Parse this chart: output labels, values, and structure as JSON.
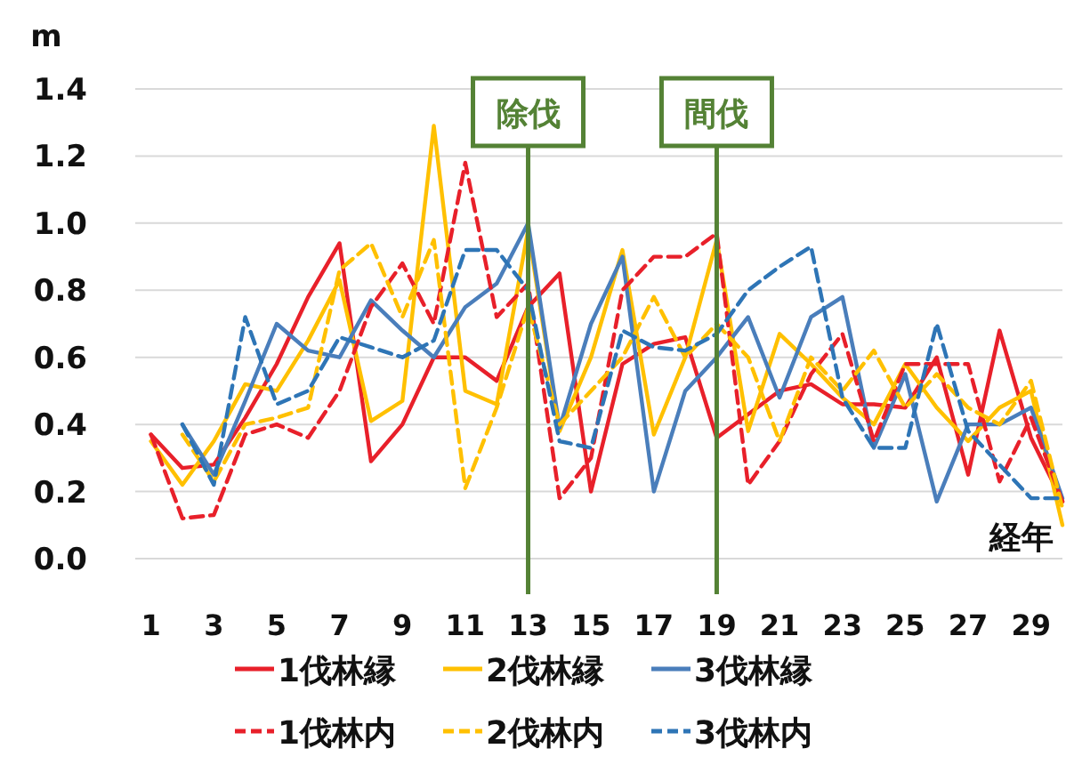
{
  "chart_data": {
    "type": "line",
    "ylabel": "m",
    "xlabel": "経年",
    "x": [
      1,
      2,
      3,
      4,
      5,
      6,
      7,
      8,
      9,
      10,
      11,
      12,
      13,
      14,
      15,
      16,
      17,
      18,
      19,
      20,
      21,
      22,
      23,
      24,
      25,
      26,
      27,
      28,
      29,
      30
    ],
    "xlim": [
      0.5,
      30
    ],
    "xticks": [
      1,
      3,
      5,
      7,
      9,
      11,
      13,
      15,
      17,
      19,
      21,
      23,
      25,
      27,
      29
    ],
    "ylim": [
      0,
      1.4
    ],
    "yticks": [
      {
        "value": 0,
        "label": "0.0"
      },
      {
        "value": 0.2,
        "label": "0.2"
      },
      {
        "value": 0.4,
        "label": "0.4"
      },
      {
        "value": 0.6,
        "label": "0.6"
      },
      {
        "value": 0.8,
        "label": "0.8"
      },
      {
        "value": 1.0,
        "label": "1.0"
      },
      {
        "value": 1.2,
        "label": "1.2"
      },
      {
        "value": 1.4,
        "label": "1.4"
      }
    ],
    "grid": "y",
    "legend": "bottom",
    "marker": "none",
    "series": [
      {
        "name": "1伐林縁",
        "color": "#e8202a",
        "line_style": "solid",
        "values": [
          0.37,
          0.27,
          0.28,
          0.42,
          0.58,
          0.78,
          0.94,
          0.29,
          0.4,
          0.6,
          0.6,
          0.53,
          0.75,
          0.85,
          0.2,
          0.58,
          0.64,
          0.66,
          0.36,
          0.43,
          0.5,
          0.52,
          0.46,
          0.46,
          0.45,
          0.6,
          0.25,
          0.68,
          0.36,
          0.17
        ]
      },
      {
        "name": "2伐林縁",
        "color": "#ffc000",
        "line_style": "solid",
        "values": [
          0.35,
          0.22,
          0.35,
          0.52,
          0.5,
          0.65,
          0.83,
          0.41,
          0.47,
          1.29,
          0.5,
          0.46,
          0.98,
          0.38,
          0.6,
          0.92,
          0.37,
          0.6,
          0.95,
          0.38,
          0.67,
          0.58,
          0.48,
          0.4,
          0.58,
          0.45,
          0.35,
          0.45,
          0.5,
          0.1
        ]
      },
      {
        "name": "3伐林縁",
        "color": "#4a7ebb",
        "line_style": "solid",
        "values": [
          null,
          0.4,
          0.25,
          0.47,
          0.7,
          0.62,
          0.6,
          0.77,
          0.68,
          0.6,
          0.75,
          0.82,
          1.0,
          0.39,
          0.7,
          0.9,
          0.2,
          0.5,
          0.6,
          0.72,
          0.48,
          0.72,
          0.78,
          0.33,
          0.55,
          0.17,
          0.4,
          0.4,
          0.45,
          0.18
        ]
      },
      {
        "name": "1伐林内",
        "color": "#e8202a",
        "line_style": "dashed",
        "values": [
          0.37,
          0.12,
          0.13,
          0.37,
          0.4,
          0.36,
          0.5,
          0.75,
          0.88,
          0.7,
          1.18,
          0.72,
          0.82,
          0.18,
          0.3,
          0.8,
          0.9,
          0.9,
          0.97,
          0.22,
          0.35,
          0.55,
          0.67,
          0.35,
          0.58,
          0.58,
          0.58,
          0.23,
          0.42,
          0.17
        ]
      },
      {
        "name": "2伐林内",
        "color": "#ffc000",
        "line_style": "dashed",
        "values": [
          null,
          0.37,
          0.23,
          0.4,
          0.42,
          0.45,
          0.86,
          0.94,
          0.72,
          0.95,
          0.21,
          0.45,
          0.75,
          0.4,
          0.5,
          0.6,
          0.78,
          0.6,
          0.7,
          0.6,
          0.35,
          0.6,
          0.5,
          0.62,
          0.45,
          0.55,
          0.45,
          0.4,
          0.53,
          0.15
        ]
      },
      {
        "name": "3伐林内",
        "color": "#2e75b6",
        "line_style": "dashed",
        "values": [
          null,
          0.4,
          0.22,
          0.72,
          0.46,
          0.5,
          0.66,
          0.63,
          0.6,
          0.65,
          0.92,
          0.92,
          0.8,
          0.35,
          0.33,
          0.68,
          0.63,
          0.62,
          0.67,
          0.8,
          0.87,
          0.93,
          0.48,
          0.33,
          0.33,
          0.7,
          0.38,
          0.28,
          0.18,
          0.18
        ]
      }
    ],
    "ref_lines": [
      {
        "axis": "x",
        "value": 13,
        "label": "除伐",
        "color": "#548235"
      },
      {
        "axis": "x",
        "value": 19,
        "label": "間伐",
        "color": "#548235"
      }
    ]
  }
}
